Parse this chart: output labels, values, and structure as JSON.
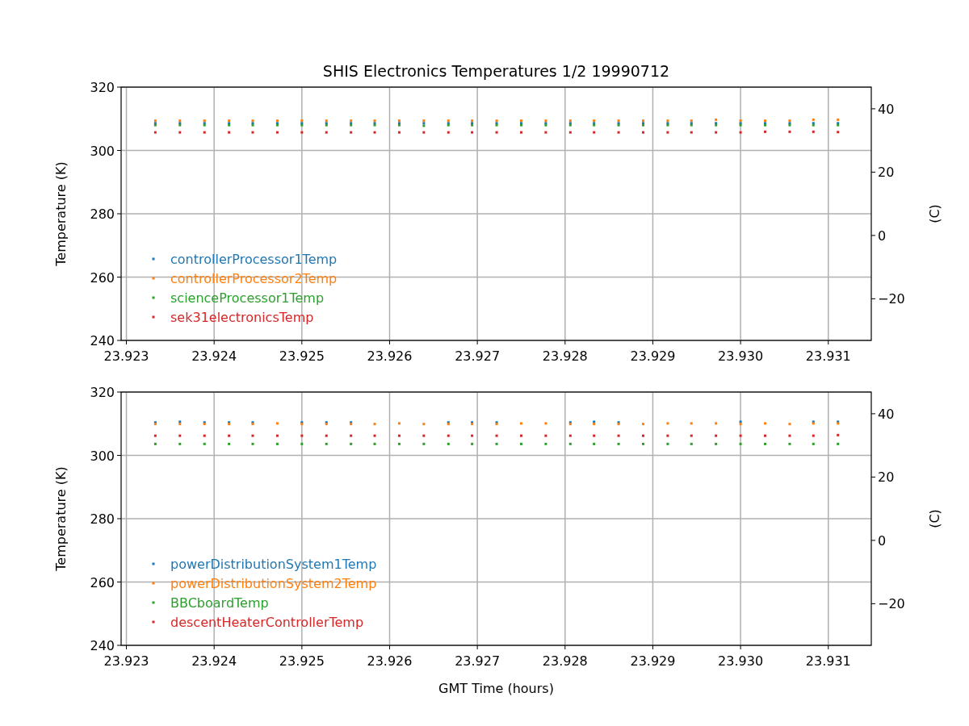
{
  "chart_data": [
    {
      "type": "scatter",
      "title": "SHIS Electronics Temperatures 1/2 19990712",
      "ylabel": "Temperature (K)",
      "y2label": "(C)",
      "x": [
        23.92333,
        23.92361,
        23.92389,
        23.92417,
        23.92444,
        23.92472,
        23.925,
        23.92528,
        23.92556,
        23.92583,
        23.92611,
        23.92639,
        23.92667,
        23.92694,
        23.92722,
        23.9275,
        23.92778,
        23.92806,
        23.92833,
        23.92861,
        23.92889,
        23.92917,
        23.92944,
        23.92972,
        23.93,
        23.93028,
        23.93056,
        23.93083,
        23.93111
      ],
      "series": [
        {
          "name": "controllerProcessor1Temp",
          "color": "#1f77b4",
          "values": [
            308.6,
            308.6,
            308.6,
            308.6,
            308.6,
            308.6,
            308.6,
            308.6,
            308.6,
            308.6,
            308.6,
            308.6,
            308.6,
            308.6,
            308.6,
            308.6,
            308.6,
            308.6,
            308.6,
            308.6,
            308.6,
            308.6,
            308.6,
            308.6,
            308.6,
            308.6,
            308.6,
            308.6,
            308.6
          ]
        },
        {
          "name": "controllerProcessor2Temp",
          "color": "#ff7f0e",
          "values": [
            309.4,
            309.4,
            309.4,
            309.4,
            309.4,
            309.4,
            309.4,
            309.4,
            309.4,
            309.4,
            309.4,
            309.4,
            309.4,
            309.4,
            309.4,
            309.4,
            309.4,
            309.4,
            309.4,
            309.4,
            309.4,
            309.4,
            309.4,
            309.7,
            309.4,
            309.4,
            309.4,
            309.7,
            309.7
          ]
        },
        {
          "name": "scienceProcessor1Temp",
          "color": "#2ca02c",
          "values": [
            308.0,
            308.0,
            308.0,
            308.0,
            308.0,
            308.0,
            308.0,
            308.0,
            308.0,
            308.0,
            308.0,
            307.8,
            308.0,
            308.0,
            308.0,
            308.0,
            308.0,
            308.0,
            308.0,
            308.0,
            308.0,
            308.0,
            308.0,
            308.0,
            308.0,
            308.0,
            308.0,
            308.0,
            308.0
          ]
        },
        {
          "name": "sek31electronicsTemp",
          "color": "#d62728",
          "values": [
            305.7,
            305.7,
            305.7,
            305.7,
            305.7,
            305.7,
            305.7,
            305.7,
            305.7,
            305.7,
            305.7,
            305.7,
            305.7,
            305.7,
            305.7,
            305.7,
            305.7,
            305.7,
            305.7,
            305.7,
            305.7,
            305.7,
            305.7,
            305.7,
            305.7,
            305.9,
            305.9,
            305.9,
            305.8
          ]
        }
      ],
      "xlim": [
        23.92294,
        23.93149
      ],
      "xticks": [
        23.923,
        23.924,
        23.925,
        23.926,
        23.927,
        23.928,
        23.929,
        {
          "value": 23.93,
          "label": "23.930"
        },
        23.931
      ],
      "ylim": [
        240,
        320
      ],
      "yticks": [
        240,
        260,
        280,
        300,
        320
      ],
      "y2lim": [
        -33.15,
        46.85
      ],
      "y2ticks": [
        {
          "value": -20,
          "label": "−20"
        },
        0,
        20,
        40
      ],
      "grid": true,
      "legend": "bottom left",
      "marker": "square"
    },
    {
      "type": "scatter",
      "xlabel": "GMT Time (hours)",
      "ylabel": "Temperature (K)",
      "y2label": "(C)",
      "x": [
        23.92333,
        23.92361,
        23.92389,
        23.92417,
        23.92444,
        23.92472,
        23.925,
        23.92528,
        23.92556,
        23.92583,
        23.92611,
        23.92639,
        23.92667,
        23.92694,
        23.92722,
        23.9275,
        23.92778,
        23.92806,
        23.92833,
        23.92861,
        23.92889,
        23.92917,
        23.92944,
        23.92972,
        23.93,
        23.93028,
        23.93056,
        23.93083,
        23.93111
      ],
      "series": [
        {
          "name": "powerDistributionSystem1Temp",
          "color": "#1f77b4",
          "values": [
            310.4,
            310.6,
            310.4,
            310.4,
            310.4,
            null,
            310.4,
            310.4,
            310.4,
            null,
            null,
            null,
            310.4,
            310.4,
            310.4,
            null,
            null,
            310.4,
            310.6,
            310.4,
            null,
            null,
            null,
            null,
            310.6,
            null,
            null,
            310.6,
            310.6
          ]
        },
        {
          "name": "powerDistributionSystem2Temp",
          "color": "#ff7f0e",
          "values": [
            309.9,
            309.9,
            309.9,
            309.9,
            309.9,
            310.1,
            309.9,
            309.9,
            309.9,
            309.9,
            310.1,
            309.9,
            309.9,
            309.9,
            309.9,
            310.1,
            310.1,
            309.9,
            309.9,
            309.9,
            309.9,
            310.1,
            310.1,
            310.1,
            309.9,
            310.1,
            309.9,
            310.1,
            310.1
          ]
        },
        {
          "name": "BBCboardTemp",
          "color": "#2ca02c",
          "values": [
            303.6,
            303.6,
            303.6,
            303.6,
            303.6,
            303.6,
            303.6,
            303.6,
            303.6,
            303.6,
            303.6,
            303.6,
            303.6,
            303.6,
            303.6,
            303.6,
            303.6,
            303.6,
            303.6,
            303.6,
            303.6,
            303.6,
            303.6,
            303.6,
            303.6,
            303.6,
            303.6,
            303.6,
            303.6
          ]
        },
        {
          "name": "descentHeaterControllerTemp",
          "color": "#d62728",
          "values": [
            306.2,
            306.2,
            306.2,
            306.2,
            306.2,
            306.2,
            306.2,
            306.2,
            306.2,
            306.2,
            306.2,
            306.2,
            306.2,
            306.2,
            306.2,
            306.2,
            306.2,
            306.2,
            306.2,
            306.2,
            306.2,
            306.2,
            306.2,
            306.2,
            306.2,
            306.2,
            306.2,
            306.2,
            306.4
          ]
        }
      ],
      "xlim": [
        23.92294,
        23.93149
      ],
      "xticks": [
        23.923,
        23.924,
        23.925,
        23.926,
        23.927,
        23.928,
        23.929,
        {
          "value": 23.93,
          "label": "23.930"
        },
        23.931
      ],
      "ylim": [
        240,
        320
      ],
      "yticks": [
        240,
        260,
        280,
        300,
        320
      ],
      "y2lim": [
        -33.15,
        46.85
      ],
      "y2ticks": [
        {
          "value": -20,
          "label": "−20"
        },
        0,
        20,
        40
      ],
      "grid": true,
      "legend": "bottom left",
      "marker": "square"
    }
  ]
}
